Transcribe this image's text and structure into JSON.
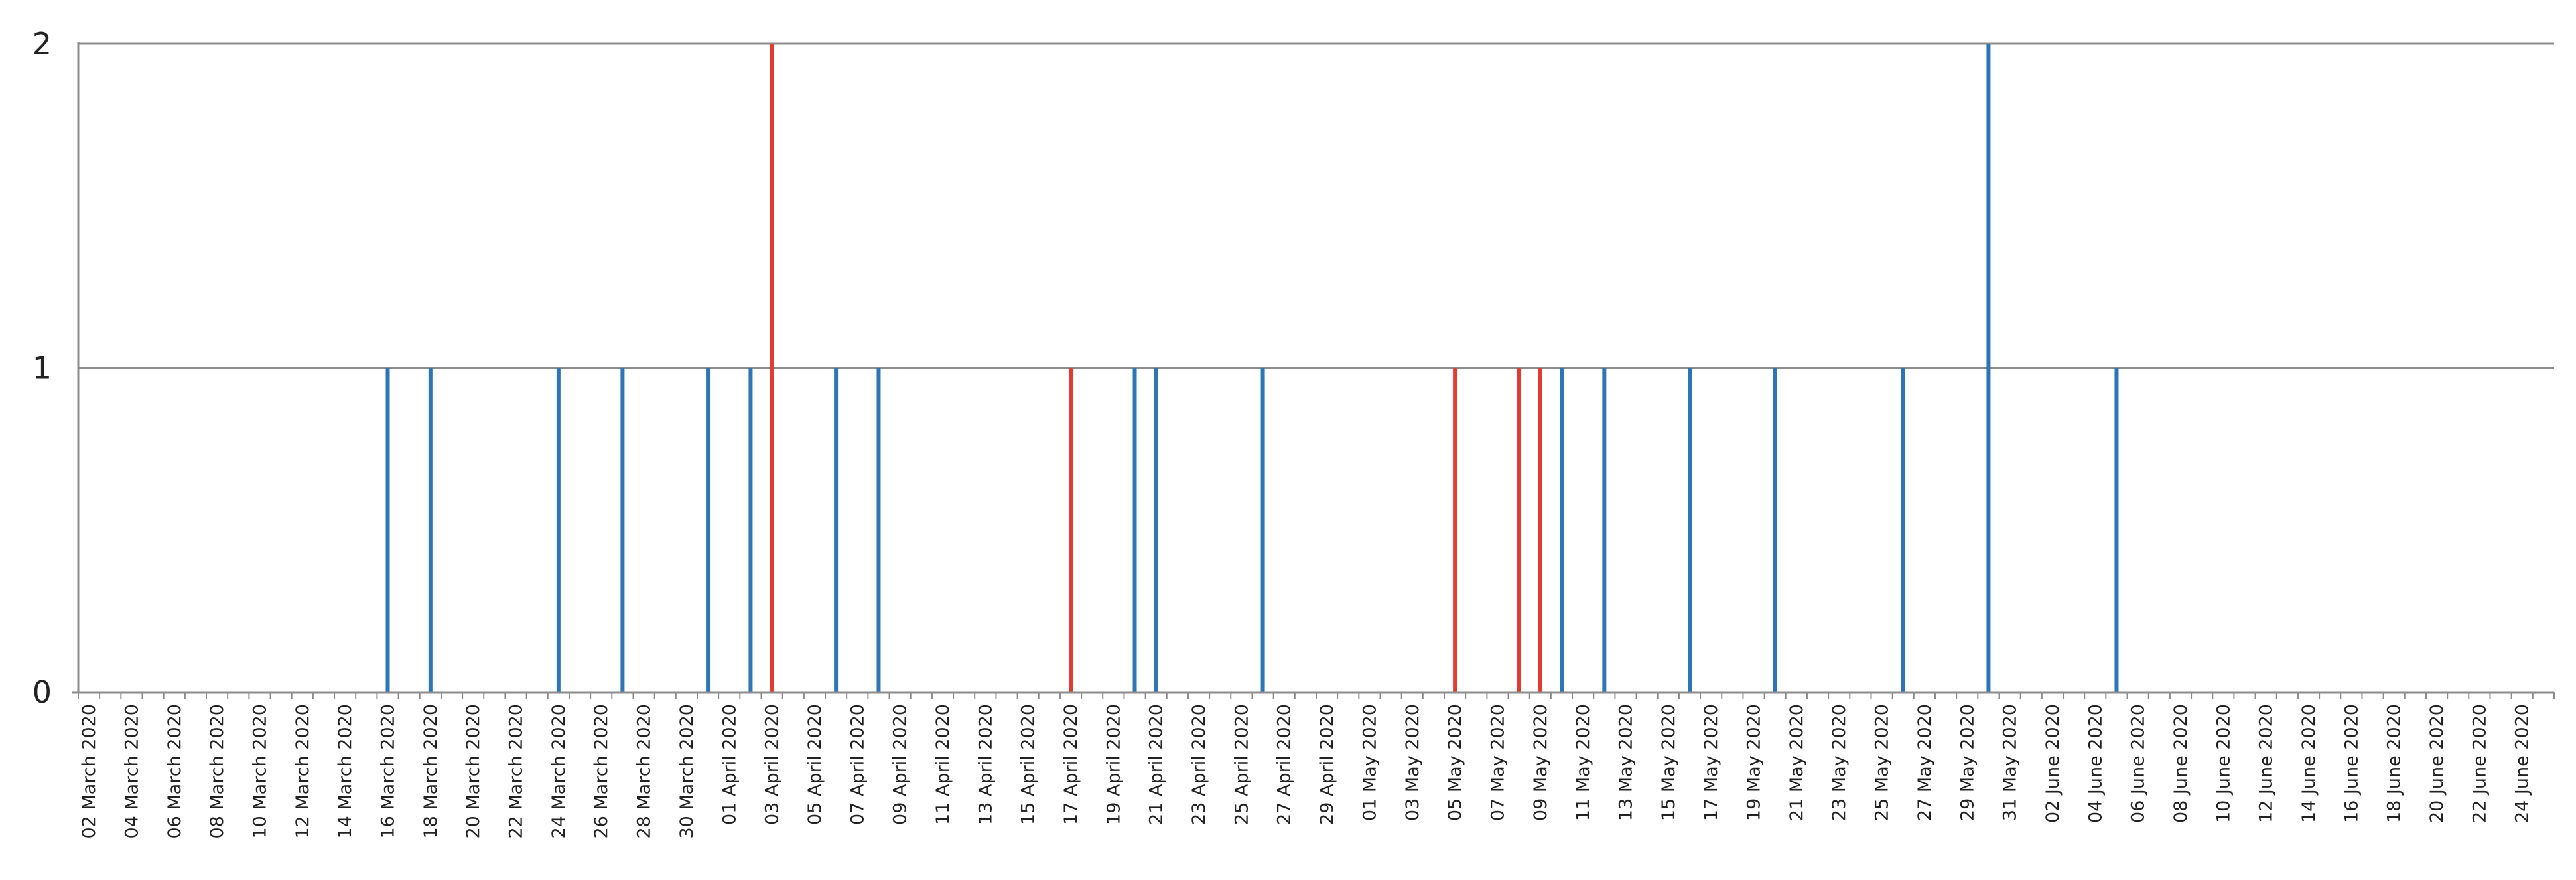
{
  "chart_data": {
    "type": "bar",
    "title": "",
    "xlabel": "",
    "ylabel": "",
    "ylim": [
      0,
      2
    ],
    "grid": true,
    "legend": "none",
    "y_ticks": [
      "0",
      "1",
      "2"
    ],
    "x_tick_labels": [
      "02 March 2020",
      "04 March 2020",
      "06 March 2020",
      "08 March 2020",
      "10 March 2020",
      "12 March 2020",
      "14 March 2020",
      "16 March 2020",
      "18 March 2020",
      "20 March 2020",
      "22 March 2020",
      "24 March 2020",
      "26 March 2020",
      "28 March 2020",
      "30 March 2020",
      "01 April 2020",
      "03 April 2020",
      "05 April 2020",
      "07 April 2020",
      "09 April 2020",
      "11 April 2020",
      "13 April 2020",
      "15 April 2020",
      "17 April 2020",
      "19 April 2020",
      "21 April 2020",
      "23 April 2020",
      "25 April 2020",
      "27 April 2020",
      "29 April 2020",
      "01 May 2020",
      "03 May 2020",
      "05 May 2020",
      "07 May 2020",
      "09 May 2020",
      "11 May 2020",
      "13 May 2020",
      "15 May 2020",
      "17 May 2020",
      "19 May 2020",
      "21 May 2020",
      "23 May 2020",
      "25 May 2020",
      "27 May 2020",
      "29 May 2020",
      "31 May 2020",
      "02 June 2020",
      "04 June 2020",
      "06 June 2020",
      "08 June 2020",
      "10 June 2020",
      "12 June 2020",
      "14 June 2020",
      "16 June 2020",
      "18 June 2020",
      "20 June 2020",
      "22 June 2020",
      "24 June 2020"
    ],
    "x_range": [
      "02 March 2020",
      "25 June 2020"
    ],
    "series": [
      {
        "color": "#2e75b6",
        "points": [
          {
            "x": "16 March 2020",
            "y": 1
          },
          {
            "x": "18 March 2020",
            "y": 1
          },
          {
            "x": "24 March 2020",
            "y": 1
          },
          {
            "x": "27 March 2020",
            "y": 1
          },
          {
            "x": "31 March 2020",
            "y": 1
          },
          {
            "x": "02 April 2020",
            "y": 1
          },
          {
            "x": "06 April 2020",
            "y": 1
          },
          {
            "x": "08 April 2020",
            "y": 1
          },
          {
            "x": "20 April 2020",
            "y": 1
          },
          {
            "x": "21 April 2020",
            "y": 1
          },
          {
            "x": "26 April 2020",
            "y": 1
          },
          {
            "x": "10 May 2020",
            "y": 1
          },
          {
            "x": "12 May 2020",
            "y": 1
          },
          {
            "x": "16 May 2020",
            "y": 1
          },
          {
            "x": "20 May 2020",
            "y": 1
          },
          {
            "x": "26 May 2020",
            "y": 1
          },
          {
            "x": "30 May 2020",
            "y": 2
          },
          {
            "x": "05 June 2020",
            "y": 1
          }
        ]
      },
      {
        "color": "#e03c31",
        "points": [
          {
            "x": "03 April 2020",
            "y": 2
          },
          {
            "x": "17 April 2020",
            "y": 1
          },
          {
            "x": "05 May 2020",
            "y": 1
          },
          {
            "x": "08 May 2020",
            "y": 1
          },
          {
            "x": "09 May 2020",
            "y": 1
          }
        ]
      }
    ]
  }
}
